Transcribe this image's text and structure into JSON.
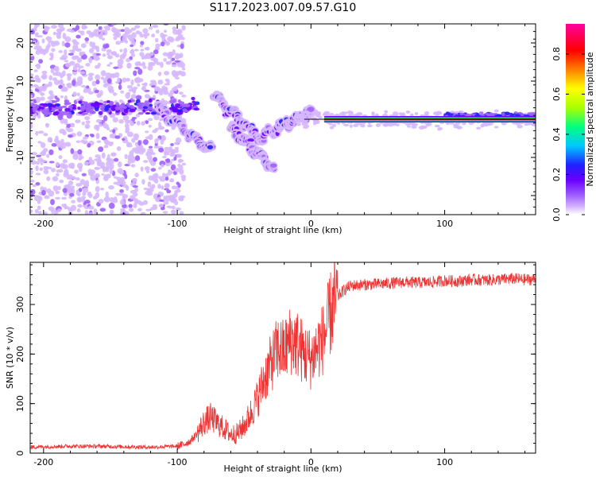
{
  "figure_title": "S117.2023.007.09.57.G10",
  "chart_data": [
    {
      "type": "heatmap",
      "title": "",
      "xlabel": "Height of straight line (km)",
      "ylabel": "Frequency (Hz)",
      "xlim": [
        -210,
        168
      ],
      "ylim": [
        -25,
        25
      ],
      "xticks": [
        -200,
        -100,
        0,
        100
      ],
      "yticks": [
        -20,
        -10,
        0,
        10,
        20
      ],
      "colorbar": {
        "label": "Normalized spectral amplitude",
        "range": [
          0,
          0.95
        ],
        "ticks": [
          0.0,
          0.2,
          0.4,
          0.6,
          0.8
        ],
        "colormap": [
          "#ffffff",
          "#d6b8ff",
          "#a060ff",
          "#6a00ff",
          "#2020ff",
          "#00c8ff",
          "#00ff80",
          "#a8ff00",
          "#ffff00",
          "#ff8000",
          "#ff0000",
          "#ff00a0"
        ]
      },
      "features": {
        "noise_region_x": [
          -210,
          -95
        ],
        "tone_line": {
          "x": [
            10,
            168
          ],
          "frequency": 0,
          "amplitude": 0.9
        },
        "wave_segments": [
          {
            "x": [
              -115,
              -75
            ],
            "f": [
              3,
              -8
            ]
          },
          {
            "x": [
              -72,
              -35
            ],
            "f": [
              6,
              -6
            ]
          },
          {
            "x": [
              -60,
              -28
            ],
            "f": [
              -2,
              -13
            ]
          },
          {
            "x": [
              -35,
              0
            ],
            "f": [
              -4,
              2
            ]
          }
        ]
      }
    },
    {
      "type": "line",
      "title": "",
      "xlabel": "Height of straight line (km)",
      "ylabel": "SNR (10 * v/v)",
      "xlim": [
        -210,
        168
      ],
      "ylim": [
        0,
        385
      ],
      "xticks": [
        -200,
        -100,
        0,
        100
      ],
      "yticks": [
        0,
        100,
        200,
        300
      ],
      "color": "#ee3333",
      "series": [
        {
          "x": [
            -210,
            -200,
            -180,
            -160,
            -140,
            -120,
            -100,
            -95,
            -90,
            -85,
            -80,
            -75,
            -70,
            -65,
            -60,
            -55,
            -50,
            -45,
            -40,
            -35,
            -30,
            -25,
            -20,
            -15,
            -10,
            -5,
            0,
            5,
            10,
            15,
            20,
            25,
            30,
            40,
            50,
            60,
            70,
            80,
            90,
            100,
            110,
            120,
            130,
            140,
            150,
            160,
            168
          ],
          "values": [
            12,
            13,
            14,
            14,
            13,
            12,
            14,
            18,
            25,
            40,
            62,
            72,
            60,
            50,
            38,
            40,
            55,
            80,
            110,
            150,
            180,
            210,
            205,
            230,
            220,
            200,
            190,
            215,
            235,
            285,
            315,
            330,
            338,
            340,
            341,
            343,
            345,
            344,
            345,
            348,
            347,
            350,
            349,
            350,
            352,
            350,
            351
          ]
        }
      ]
    }
  ]
}
